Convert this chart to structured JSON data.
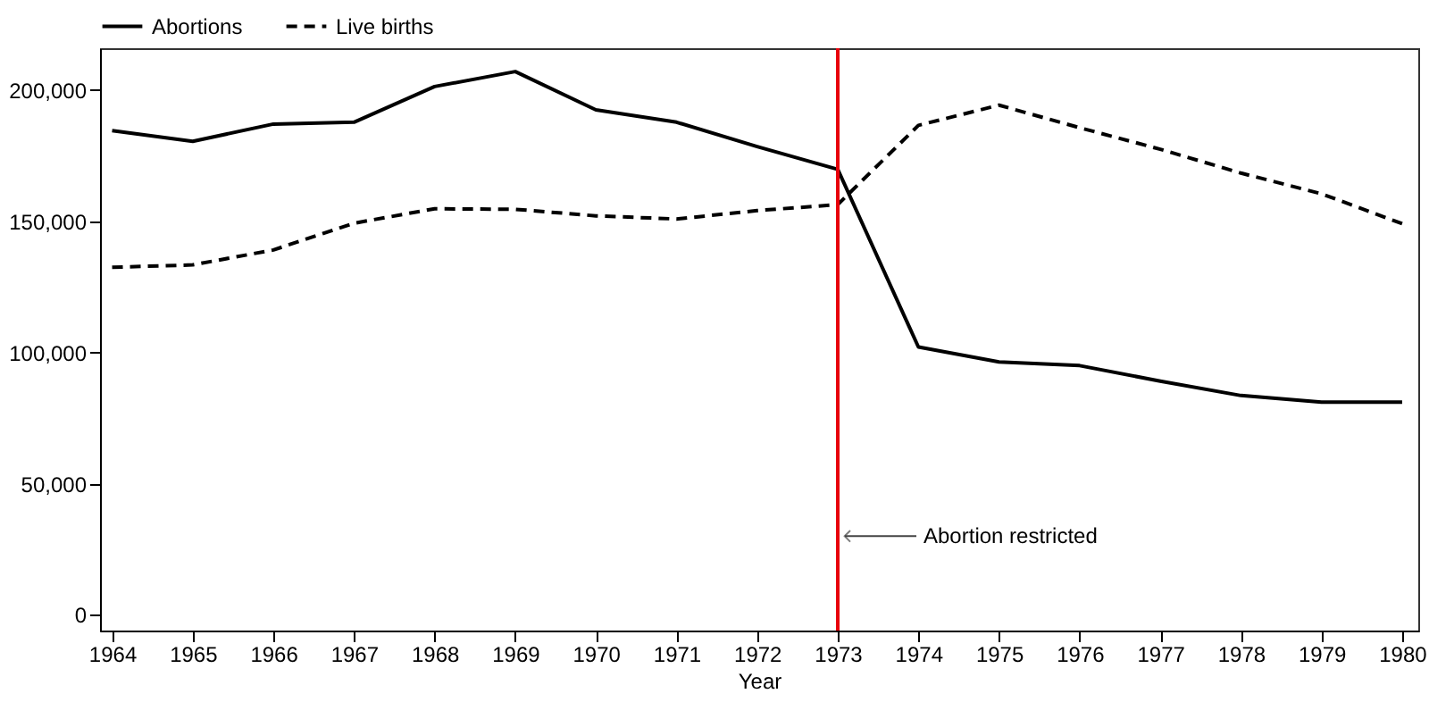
{
  "chart_data": {
    "type": "line",
    "xlabel": "Year",
    "x": [
      1964,
      1965,
      1966,
      1967,
      1968,
      1969,
      1970,
      1971,
      1972,
      1973,
      1974,
      1975,
      1976,
      1977,
      1978,
      1979,
      1980
    ],
    "series": [
      {
        "name": "Abortions",
        "color": "#000000",
        "line_style": "solid",
        "values": [
          184600,
          180500,
          187100,
          187800,
          201400,
          207100,
          192500,
          187800,
          178500,
          169800,
          102100,
          96400,
          95000,
          89100,
          83600,
          81100,
          81100
        ]
      },
      {
        "name": "Live births",
        "color": "#000000",
        "line_style": "dashed",
        "values": [
          132500,
          133400,
          139100,
          149300,
          154800,
          154600,
          152100,
          150900,
          154100,
          156400,
          186600,
          194300,
          185700,
          177500,
          168400,
          160500,
          149100
        ]
      }
    ],
    "xlim": [
      1963.85,
      1980.2
    ],
    "xticks": [
      1964,
      1965,
      1966,
      1967,
      1968,
      1969,
      1970,
      1971,
      1972,
      1973,
      1974,
      1975,
      1976,
      1977,
      1978,
      1979,
      1980
    ],
    "ylim": [
      -6000,
      216000
    ],
    "yticks": [
      0,
      {
        "value": 50000,
        "label": "50,000"
      },
      {
        "value": 100000,
        "label": "100,000"
      },
      {
        "value": 150000,
        "label": "150,000"
      },
      {
        "value": 200000,
        "label": "200,000"
      }
    ],
    "ref_lines": [
      {
        "axis": "x",
        "value": 1973,
        "color": "#e8000b"
      }
    ],
    "annotations": [
      {
        "text": "Abortion restricted",
        "x": 1973,
        "y": 30000
      }
    ],
    "grid": false,
    "legend": "top",
    "marker": "none"
  }
}
